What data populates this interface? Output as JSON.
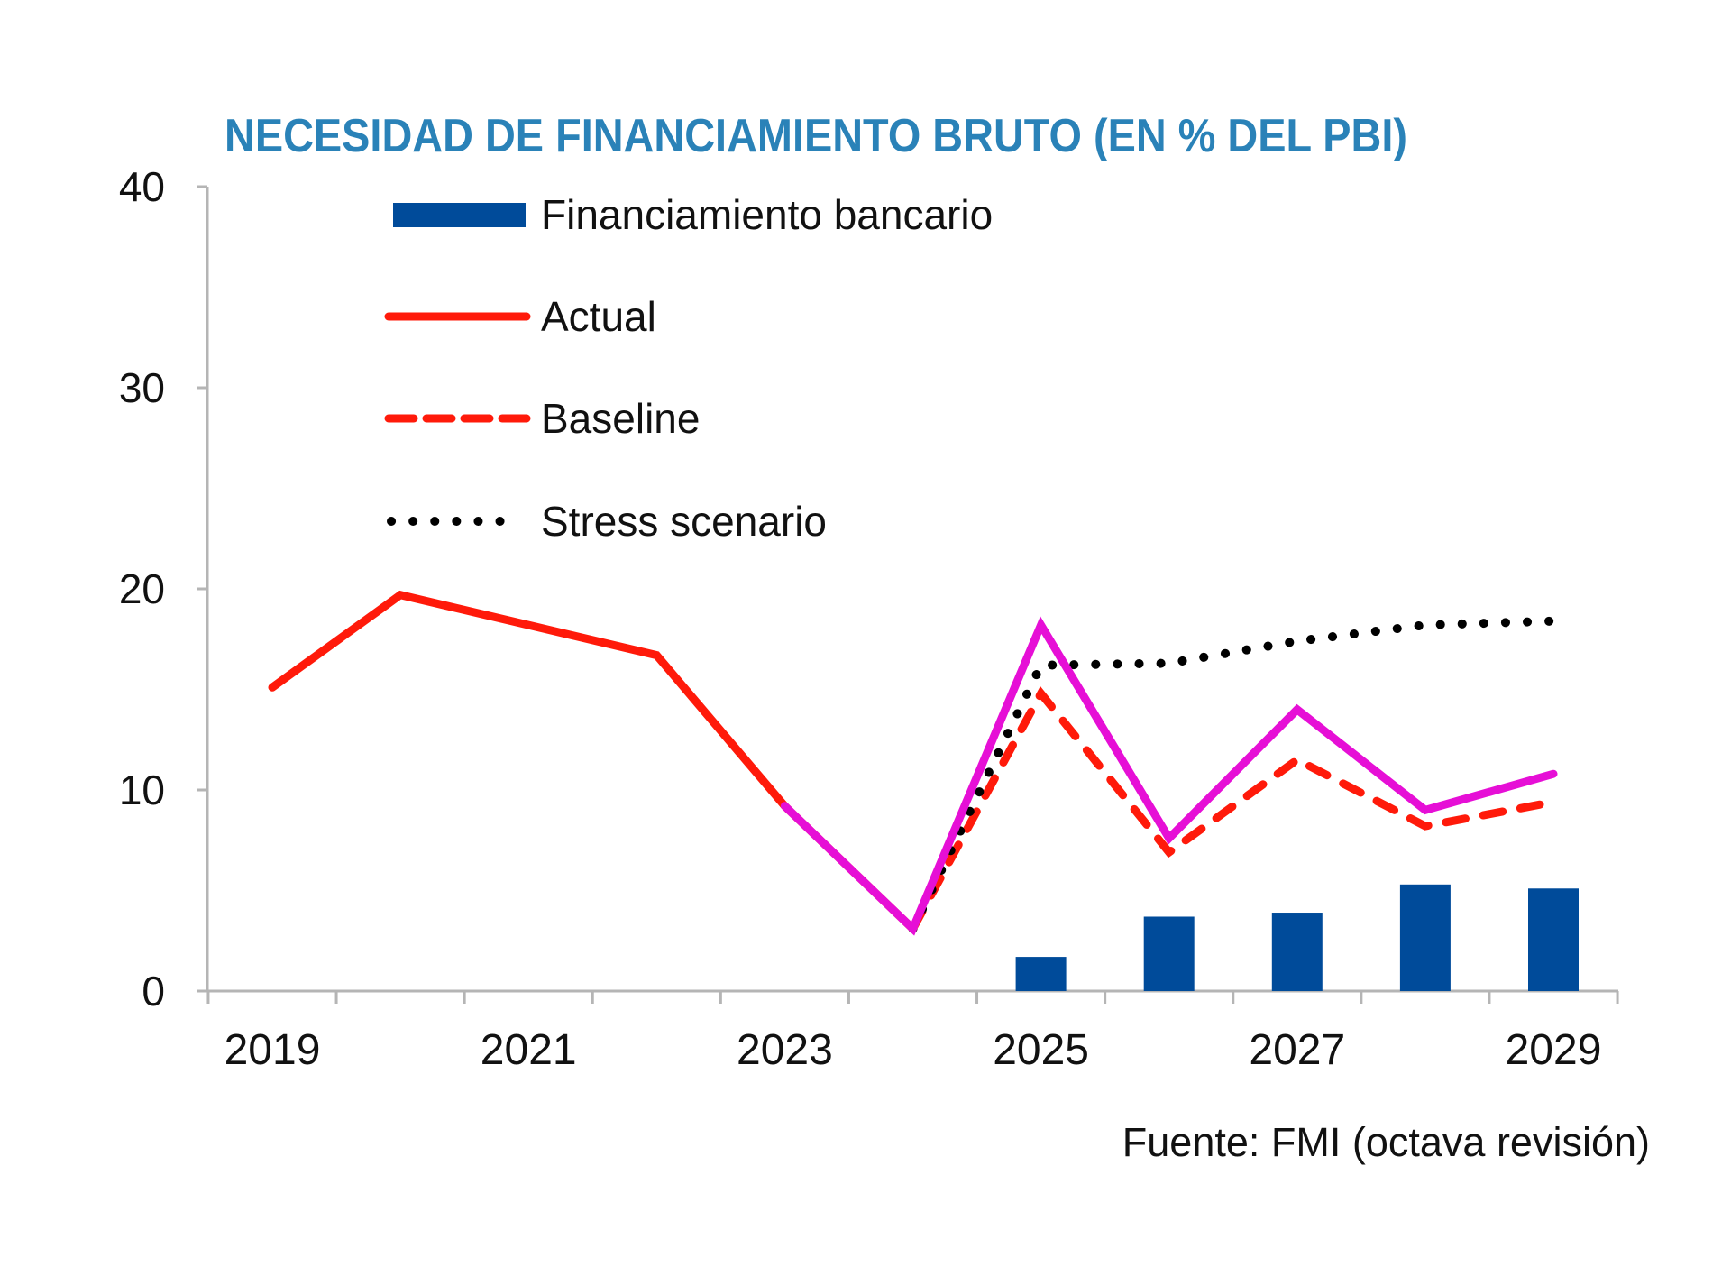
{
  "chart_data": {
    "type": "line",
    "title": "NECESIDAD DE FINANCIAMIENTO BRUTO (EN % DEL PBI)",
    "source": "Fuente: FMI (octava revisión)",
    "xlabel": "",
    "ylabel": "",
    "ylim": [
      0,
      40
    ],
    "yticks": [
      0,
      10,
      20,
      30,
      40
    ],
    "x": [
      2019,
      2020,
      2021,
      2022,
      2023,
      2024,
      2025,
      2026,
      2027,
      2028,
      2029
    ],
    "xtick_labels": [
      "2019",
      "2021",
      "2023",
      "2025",
      "2027",
      "2029"
    ],
    "grid": false,
    "legend_position": "top-left",
    "series": [
      {
        "name": "Financiamiento bancario",
        "kind": "bar",
        "color": "#004b9a",
        "x": [
          2025,
          2026,
          2027,
          2028,
          2029
        ],
        "values": [
          1.7,
          3.7,
          3.9,
          5.3,
          5.1
        ]
      },
      {
        "name": "Actual",
        "kind": "line",
        "style": "solid",
        "color": "#ff1a0a",
        "x": [
          2019,
          2020,
          2021,
          2022,
          2023,
          2024
        ],
        "values": [
          15.1,
          19.7,
          18.2,
          16.7,
          9.2,
          3.1
        ]
      },
      {
        "name": "Baseline",
        "kind": "line",
        "style": "dashed",
        "color": "#ff1a0a",
        "x": [
          2024,
          2025,
          2026,
          2027,
          2028,
          2029
        ],
        "values": [
          3.1,
          14.8,
          6.9,
          11.5,
          8.2,
          9.4
        ]
      },
      {
        "name": "Stress scenario",
        "kind": "line",
        "style": "dotted",
        "color": "#000000",
        "x": [
          2024,
          2025,
          2026,
          2027,
          2028,
          2029
        ],
        "values": [
          3.1,
          16.2,
          16.3,
          17.4,
          18.2,
          18.4
        ]
      },
      {
        "name": "Overlay (unlabeled)",
        "kind": "line",
        "style": "solid",
        "color": "#e60fd6",
        "in_legend": false,
        "x": [
          2023,
          2024,
          2025,
          2026,
          2027,
          2028,
          2029
        ],
        "values": [
          9.2,
          3.1,
          18.2,
          7.6,
          14.0,
          9.0,
          10.8
        ]
      }
    ],
    "legend": [
      {
        "label": "Financiamiento bancario",
        "symbol": "bar",
        "color": "#004b9a"
      },
      {
        "label": "Actual",
        "symbol": "solid",
        "color": "#ff1a0a"
      },
      {
        "label": "Baseline",
        "symbol": "dashed",
        "color": "#ff1a0a"
      },
      {
        "label": "Stress scenario",
        "symbol": "dotted",
        "color": "#000000"
      }
    ]
  }
}
